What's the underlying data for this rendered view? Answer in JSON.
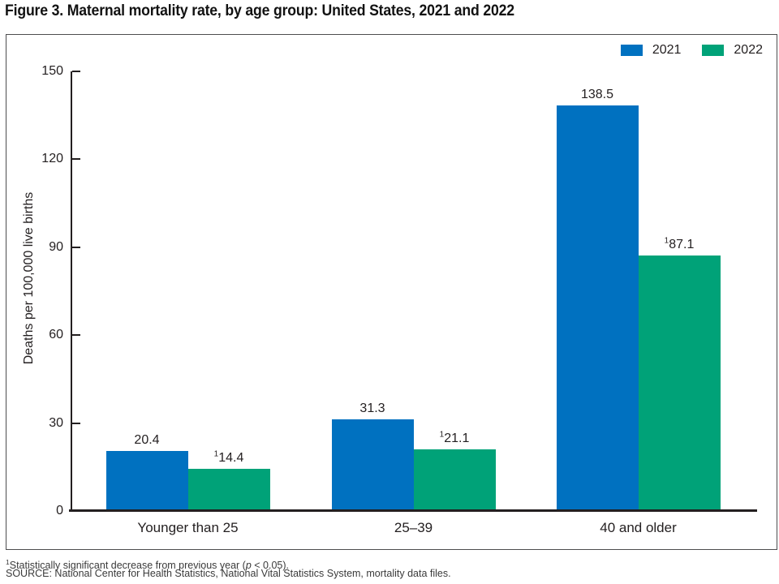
{
  "figure": {
    "title": "Figure 3. Maternal mortality rate, by age group: United States, 2021 and 2022"
  },
  "chart_data": {
    "type": "bar",
    "title": "Figure 3. Maternal mortality rate, by age group: United States, 2021 and 2022",
    "categories": [
      "Younger than 25",
      "25–39",
      "40 and older"
    ],
    "series": [
      {
        "name": "2021",
        "color": "#0071C0",
        "values": [
          20.4,
          31.3,
          138.5
        ],
        "value_labels": [
          {
            "sup": "",
            "text": "20.4"
          },
          {
            "sup": "",
            "text": "31.3"
          },
          {
            "sup": "",
            "text": "138.5"
          }
        ]
      },
      {
        "name": "2022",
        "color": "#00A278",
        "values": [
          14.4,
          21.1,
          87.1
        ],
        "value_labels": [
          {
            "sup": "1",
            "text": "14.4"
          },
          {
            "sup": "1",
            "text": "21.1"
          },
          {
            "sup": "1",
            "text": "87.1"
          }
        ]
      }
    ],
    "xlabel": "",
    "ylabel": "Deaths per 100,000 live births",
    "yticks": [
      0,
      30,
      60,
      90,
      120,
      150
    ],
    "ylim": [
      0,
      150
    ],
    "grouped": true,
    "gap_within_group": 0,
    "grid": false,
    "legend_position": "top-right",
    "axis_color": "#231F20"
  },
  "footnotes": {
    "note1": {
      "sup": "1",
      "pre": "Statistically significant decrease from previous year (",
      "italic": "p",
      "post": " < 0.05)."
    },
    "source": "SOURCE: National Center for Health Statistics, National Vital Statistics System, mortality data files."
  }
}
